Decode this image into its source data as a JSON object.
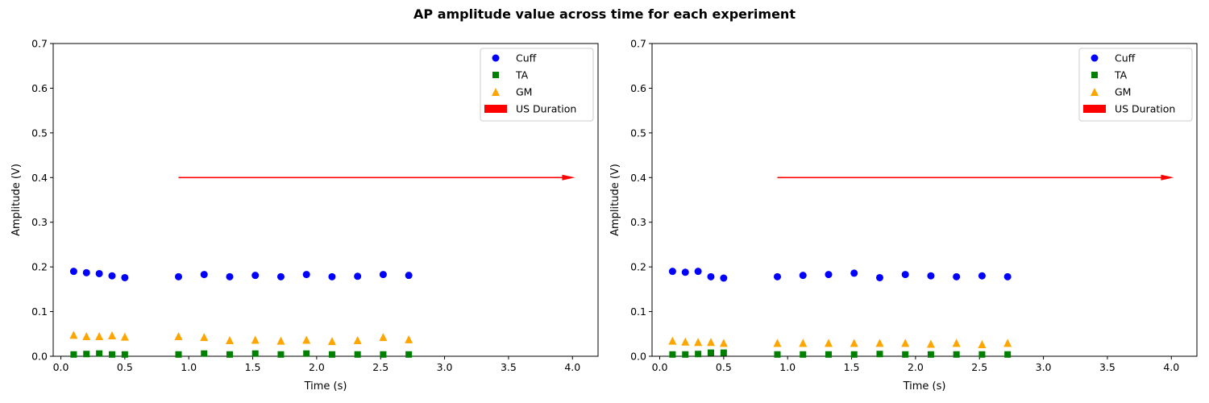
{
  "figure": {
    "suptitle": "AP amplitude value across time for each experiment"
  },
  "colors": {
    "cuff": "#0000ff",
    "ta": "#008000",
    "gm": "#ffa500",
    "us": "#ff0000"
  },
  "chart_data": [
    {
      "type": "scatter",
      "xlabel": "Time (s)",
      "ylabel": "Amplitude (V)",
      "xlim": [
        -0.06,
        4.2
      ],
      "ylim": [
        0,
        0.7
      ],
      "xticks": [
        "0.0",
        "0.5",
        "1.0",
        "1.5",
        "2.0",
        "2.5",
        "3.0",
        "3.5",
        "4.0"
      ],
      "xtick_values": [
        0,
        0.5,
        1.0,
        1.5,
        2.0,
        2.5,
        3.0,
        3.5,
        4.0
      ],
      "yticks": [
        "0.0",
        "0.1",
        "0.2",
        "0.3",
        "0.4",
        "0.5",
        "0.6",
        "0.7"
      ],
      "ytick_values": [
        0,
        0.1,
        0.2,
        0.3,
        0.4,
        0.5,
        0.6,
        0.7
      ],
      "grid": false,
      "legend_position": "top-right",
      "x": [
        0.1,
        0.2,
        0.3,
        0.4,
        0.5,
        0.92,
        1.12,
        1.32,
        1.52,
        1.72,
        1.92,
        2.12,
        2.32,
        2.52,
        2.72
      ],
      "series": [
        {
          "name": "Cuff",
          "marker": "circle",
          "values": [
            0.19,
            0.187,
            0.185,
            0.18,
            0.176,
            0.178,
            0.183,
            0.178,
            0.181,
            0.178,
            0.183,
            0.178,
            0.179,
            0.183,
            0.181
          ]
        },
        {
          "name": "TA",
          "marker": "square",
          "values": [
            0.004,
            0.005,
            0.006,
            0.004,
            0.004,
            0.004,
            0.006,
            0.004,
            0.006,
            0.004,
            0.006,
            0.004,
            0.004,
            0.004,
            0.004
          ]
        },
        {
          "name": "GM",
          "marker": "triangle",
          "values": [
            0.048,
            0.045,
            0.045,
            0.047,
            0.044,
            0.045,
            0.043,
            0.036,
            0.037,
            0.035,
            0.037,
            0.034,
            0.036,
            0.043,
            0.038
          ]
        }
      ],
      "annotation": {
        "name": "US Duration",
        "type": "arrow",
        "x_start": 0.92,
        "x_end": 4.02,
        "y": 0.4
      }
    },
    {
      "type": "scatter",
      "xlabel": "Time (s)",
      "ylabel": "Amplitude (V)",
      "xlim": [
        -0.06,
        4.2
      ],
      "ylim": [
        0,
        0.7
      ],
      "xticks": [
        "0.0",
        "0.5",
        "1.0",
        "1.5",
        "2.0",
        "2.5",
        "3.0",
        "3.5",
        "4.0"
      ],
      "xtick_values": [
        0,
        0.5,
        1.0,
        1.5,
        2.0,
        2.5,
        3.0,
        3.5,
        4.0
      ],
      "yticks": [
        "0.0",
        "0.1",
        "0.2",
        "0.3",
        "0.4",
        "0.5",
        "0.6",
        "0.7"
      ],
      "ytick_values": [
        0,
        0.1,
        0.2,
        0.3,
        0.4,
        0.5,
        0.6,
        0.7
      ],
      "grid": false,
      "legend_position": "top-right",
      "x": [
        0.1,
        0.2,
        0.3,
        0.4,
        0.5,
        0.92,
        1.12,
        1.32,
        1.52,
        1.72,
        1.92,
        2.12,
        2.32,
        2.52,
        2.72
      ],
      "series": [
        {
          "name": "Cuff",
          "marker": "circle",
          "values": [
            0.19,
            0.188,
            0.19,
            0.178,
            0.175,
            0.178,
            0.181,
            0.183,
            0.186,
            0.176,
            0.183,
            0.18,
            0.178,
            0.18,
            0.178
          ]
        },
        {
          "name": "TA",
          "marker": "square",
          "values": [
            0.004,
            0.004,
            0.005,
            0.008,
            0.008,
            0.004,
            0.004,
            0.004,
            0.004,
            0.005,
            0.004,
            0.004,
            0.004,
            0.004,
            0.004
          ]
        },
        {
          "name": "GM",
          "marker": "triangle",
          "values": [
            0.035,
            0.033,
            0.032,
            0.032,
            0.03,
            0.03,
            0.03,
            0.03,
            0.03,
            0.03,
            0.03,
            0.028,
            0.03,
            0.027,
            0.03
          ]
        }
      ],
      "annotation": {
        "name": "US Duration",
        "type": "arrow",
        "x_start": 0.92,
        "x_end": 4.02,
        "y": 0.4
      }
    }
  ]
}
